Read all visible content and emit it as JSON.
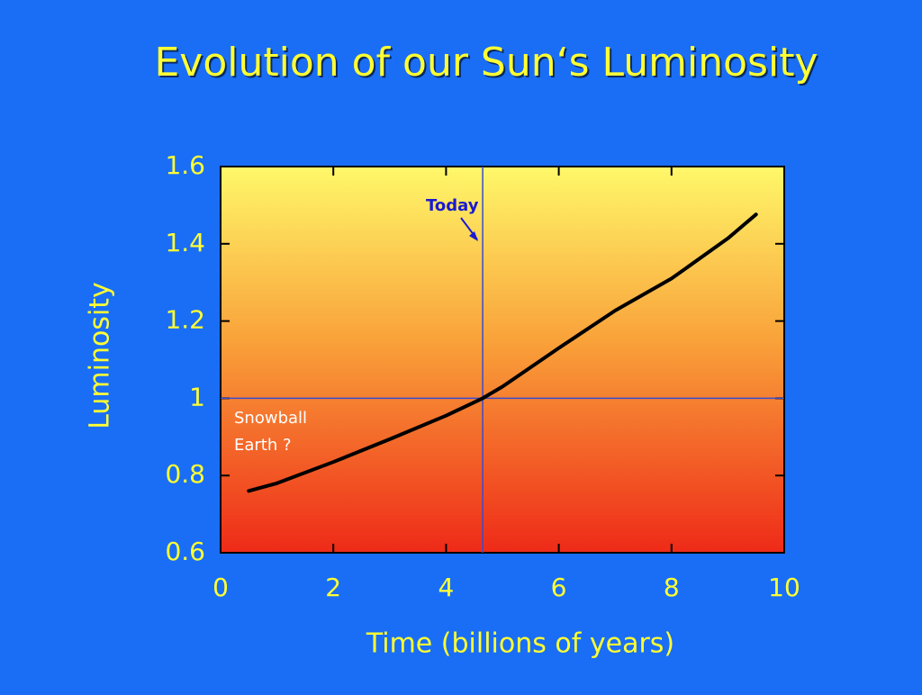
{
  "chart_data": {
    "type": "line",
    "title": "Evolution of our Sun‘s Luminosity",
    "x_label": "Time  (billions of years)",
    "y_label": "Luminosity",
    "x": [
      0.5,
      1,
      2,
      3,
      4,
      4.65,
      5,
      6,
      7,
      8,
      9,
      9.5
    ],
    "series": [
      {
        "color": "#000000",
        "values": [
          0.76,
          0.78,
          0.835,
          0.894,
          0.955,
          1.0,
          1.03,
          1.13,
          1.227,
          1.31,
          1.414,
          1.476
        ]
      }
    ],
    "xlim": [
      0,
      10
    ],
    "xticks": [
      0,
      2,
      4,
      6,
      8,
      10
    ],
    "ylim": [
      0.6,
      1.6
    ],
    "yticks": [
      0.6,
      0.8,
      1,
      1.2,
      1.4,
      1.6
    ],
    "reference_lines": {
      "x": 4.65,
      "y": 1,
      "color": "#3a4bd0"
    },
    "today_label": "Today",
    "snowball_label": [
      "Snowball",
      "Earth ?"
    ]
  }
}
